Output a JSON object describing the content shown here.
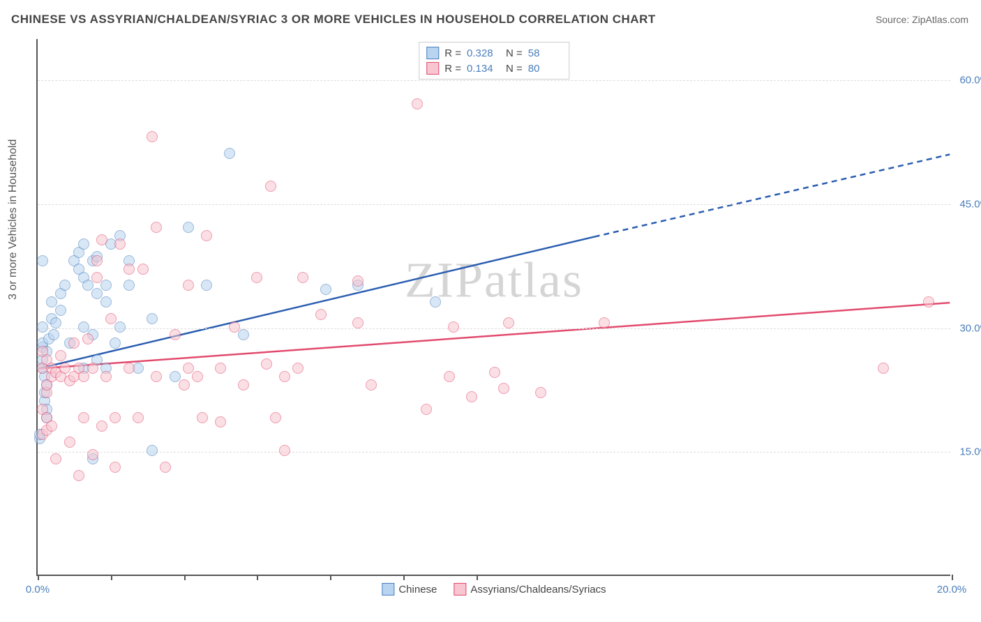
{
  "title": "CHINESE VS ASSYRIAN/CHALDEAN/SYRIAC 3 OR MORE VEHICLES IN HOUSEHOLD CORRELATION CHART",
  "source_label": "Source: ZipAtlas.com",
  "ylabel": "3 or more Vehicles in Household",
  "watermark": "ZIPatlas",
  "chart": {
    "type": "scatter",
    "background_color": "#ffffff",
    "grid_color": "#dddddd",
    "axis_color": "#555555",
    "label_color": "#4a7ebb",
    "xlim": [
      0,
      20
    ],
    "ylim": [
      0,
      65
    ],
    "xticks": [
      0,
      1.6,
      3.2,
      4.8,
      6.4,
      8.0,
      9.6,
      20
    ],
    "xtick_labels": {
      "0": "0.0%",
      "20": "20.0%"
    },
    "yticks": [
      15,
      30,
      45,
      60
    ],
    "ytick_labels": {
      "15": "15.0%",
      "30": "30.0%",
      "45": "45.0%",
      "60": "60.0%"
    },
    "legend_x": [
      {
        "label": "Chinese",
        "fill": "#b8d4f0",
        "stroke": "#4a7ebb"
      },
      {
        "label": "Assyrians/Chaldeans/Syriacs",
        "fill": "#f7c6d0",
        "stroke": "#e24a6e"
      }
    ],
    "legend_stats": [
      {
        "fill": "#b8d4f0",
        "stroke": "#4a7ebb",
        "r_label": "R =",
        "r": "0.328",
        "n_label": "N =",
        "n": "58"
      },
      {
        "fill": "#f7c6d0",
        "stroke": "#e24a6e",
        "r_label": "R =",
        "r": "0.134",
        "n_label": "N =",
        "n": "80"
      }
    ],
    "marker_radius": 8,
    "marker_opacity": 0.55,
    "series": [
      {
        "name": "Chinese",
        "fill": "#b8d4f0",
        "stroke": "#4a7ebb",
        "trend": {
          "x1": 0,
          "y1": 25,
          "x2": 12.2,
          "y2": 41,
          "dash_x2": 20,
          "dash_y2": 51,
          "color": "#2a5db0",
          "width": 2.5
        },
        "points": [
          [
            0.05,
            16.5
          ],
          [
            0.05,
            17
          ],
          [
            0.1,
            25
          ],
          [
            0.1,
            26
          ],
          [
            0.1,
            27.5
          ],
          [
            0.1,
            28
          ],
          [
            0.1,
            30
          ],
          [
            0.15,
            21
          ],
          [
            0.15,
            22
          ],
          [
            0.15,
            24
          ],
          [
            0.2,
            19
          ],
          [
            0.2,
            20
          ],
          [
            0.2,
            23
          ],
          [
            0.2,
            27
          ],
          [
            0.25,
            28.5
          ],
          [
            0.3,
            31
          ],
          [
            0.3,
            33
          ],
          [
            0.35,
            29
          ],
          [
            0.4,
            30.5
          ],
          [
            0.5,
            32
          ],
          [
            0.5,
            34
          ],
          [
            0.6,
            35
          ],
          [
            0.7,
            28
          ],
          [
            0.8,
            38
          ],
          [
            0.9,
            37
          ],
          [
            0.9,
            39
          ],
          [
            1.0,
            25
          ],
          [
            1.0,
            30
          ],
          [
            1.0,
            36
          ],
          [
            1.0,
            40
          ],
          [
            1.1,
            35
          ],
          [
            1.2,
            14
          ],
          [
            1.2,
            29
          ],
          [
            1.2,
            38
          ],
          [
            1.3,
            26
          ],
          [
            1.3,
            34
          ],
          [
            1.3,
            38.5
          ],
          [
            1.5,
            25
          ],
          [
            1.5,
            33
          ],
          [
            1.5,
            35
          ],
          [
            1.6,
            40
          ],
          [
            1.7,
            28
          ],
          [
            1.8,
            30
          ],
          [
            1.8,
            41
          ],
          [
            2.0,
            35
          ],
          [
            2.0,
            38
          ],
          [
            2.2,
            25
          ],
          [
            2.5,
            15
          ],
          [
            2.5,
            31
          ],
          [
            3.0,
            24
          ],
          [
            3.3,
            42
          ],
          [
            3.7,
            35
          ],
          [
            4.2,
            51
          ],
          [
            4.5,
            29
          ],
          [
            6.3,
            34.5
          ],
          [
            7.0,
            35
          ],
          [
            8.7,
            33
          ],
          [
            0.1,
            38
          ]
        ]
      },
      {
        "name": "Assyrians/Chaldeans/Syriacs",
        "fill": "#f7c6d0",
        "stroke": "#e24a6e",
        "trend": {
          "x1": 0,
          "y1": 25,
          "x2": 20,
          "y2": 33,
          "color": "#e24a6e",
          "width": 2.5
        },
        "points": [
          [
            0.1,
            17
          ],
          [
            0.1,
            20
          ],
          [
            0.1,
            25
          ],
          [
            0.1,
            27
          ],
          [
            0.2,
            17.5
          ],
          [
            0.2,
            19
          ],
          [
            0.2,
            22
          ],
          [
            0.2,
            23
          ],
          [
            0.2,
            26
          ],
          [
            0.3,
            18
          ],
          [
            0.3,
            24
          ],
          [
            0.3,
            25
          ],
          [
            0.4,
            14
          ],
          [
            0.4,
            24.5
          ],
          [
            0.5,
            24
          ],
          [
            0.5,
            26.5
          ],
          [
            0.6,
            25
          ],
          [
            0.7,
            16
          ],
          [
            0.7,
            23.5
          ],
          [
            0.8,
            24
          ],
          [
            0.8,
            28
          ],
          [
            0.9,
            25
          ],
          [
            0.9,
            12
          ],
          [
            1.0,
            19
          ],
          [
            1.0,
            24
          ],
          [
            1.1,
            28.5
          ],
          [
            1.2,
            14.5
          ],
          [
            1.2,
            25
          ],
          [
            1.3,
            36
          ],
          [
            1.3,
            38
          ],
          [
            1.4,
            40.5
          ],
          [
            1.4,
            18
          ],
          [
            1.5,
            24
          ],
          [
            1.6,
            31
          ],
          [
            1.7,
            13
          ],
          [
            1.7,
            19
          ],
          [
            1.8,
            40
          ],
          [
            2.0,
            37
          ],
          [
            2.0,
            25
          ],
          [
            2.2,
            19
          ],
          [
            2.3,
            37
          ],
          [
            2.5,
            53
          ],
          [
            2.6,
            24
          ],
          [
            2.6,
            42
          ],
          [
            2.8,
            13
          ],
          [
            3.0,
            29
          ],
          [
            3.2,
            23
          ],
          [
            3.3,
            25
          ],
          [
            3.3,
            35
          ],
          [
            3.5,
            24
          ],
          [
            3.6,
            19
          ],
          [
            3.7,
            41
          ],
          [
            4.0,
            18.5
          ],
          [
            4.0,
            25
          ],
          [
            4.3,
            30
          ],
          [
            4.5,
            23
          ],
          [
            4.8,
            36
          ],
          [
            5.0,
            25.5
          ],
          [
            5.1,
            47
          ],
          [
            5.2,
            19
          ],
          [
            5.4,
            15
          ],
          [
            5.4,
            24
          ],
          [
            5.7,
            25
          ],
          [
            5.8,
            36
          ],
          [
            6.2,
            31.5
          ],
          [
            7.0,
            30.5
          ],
          [
            7.0,
            35.5
          ],
          [
            7.3,
            23
          ],
          [
            8.3,
            57
          ],
          [
            8.5,
            20
          ],
          [
            9.0,
            24
          ],
          [
            9.1,
            30
          ],
          [
            9.5,
            21.5
          ],
          [
            10.0,
            24.5
          ],
          [
            10.2,
            22.5
          ],
          [
            10.3,
            30.5
          ],
          [
            11.0,
            22
          ],
          [
            12.4,
            30.5
          ],
          [
            18.5,
            25
          ],
          [
            19.5,
            33
          ]
        ]
      }
    ]
  }
}
